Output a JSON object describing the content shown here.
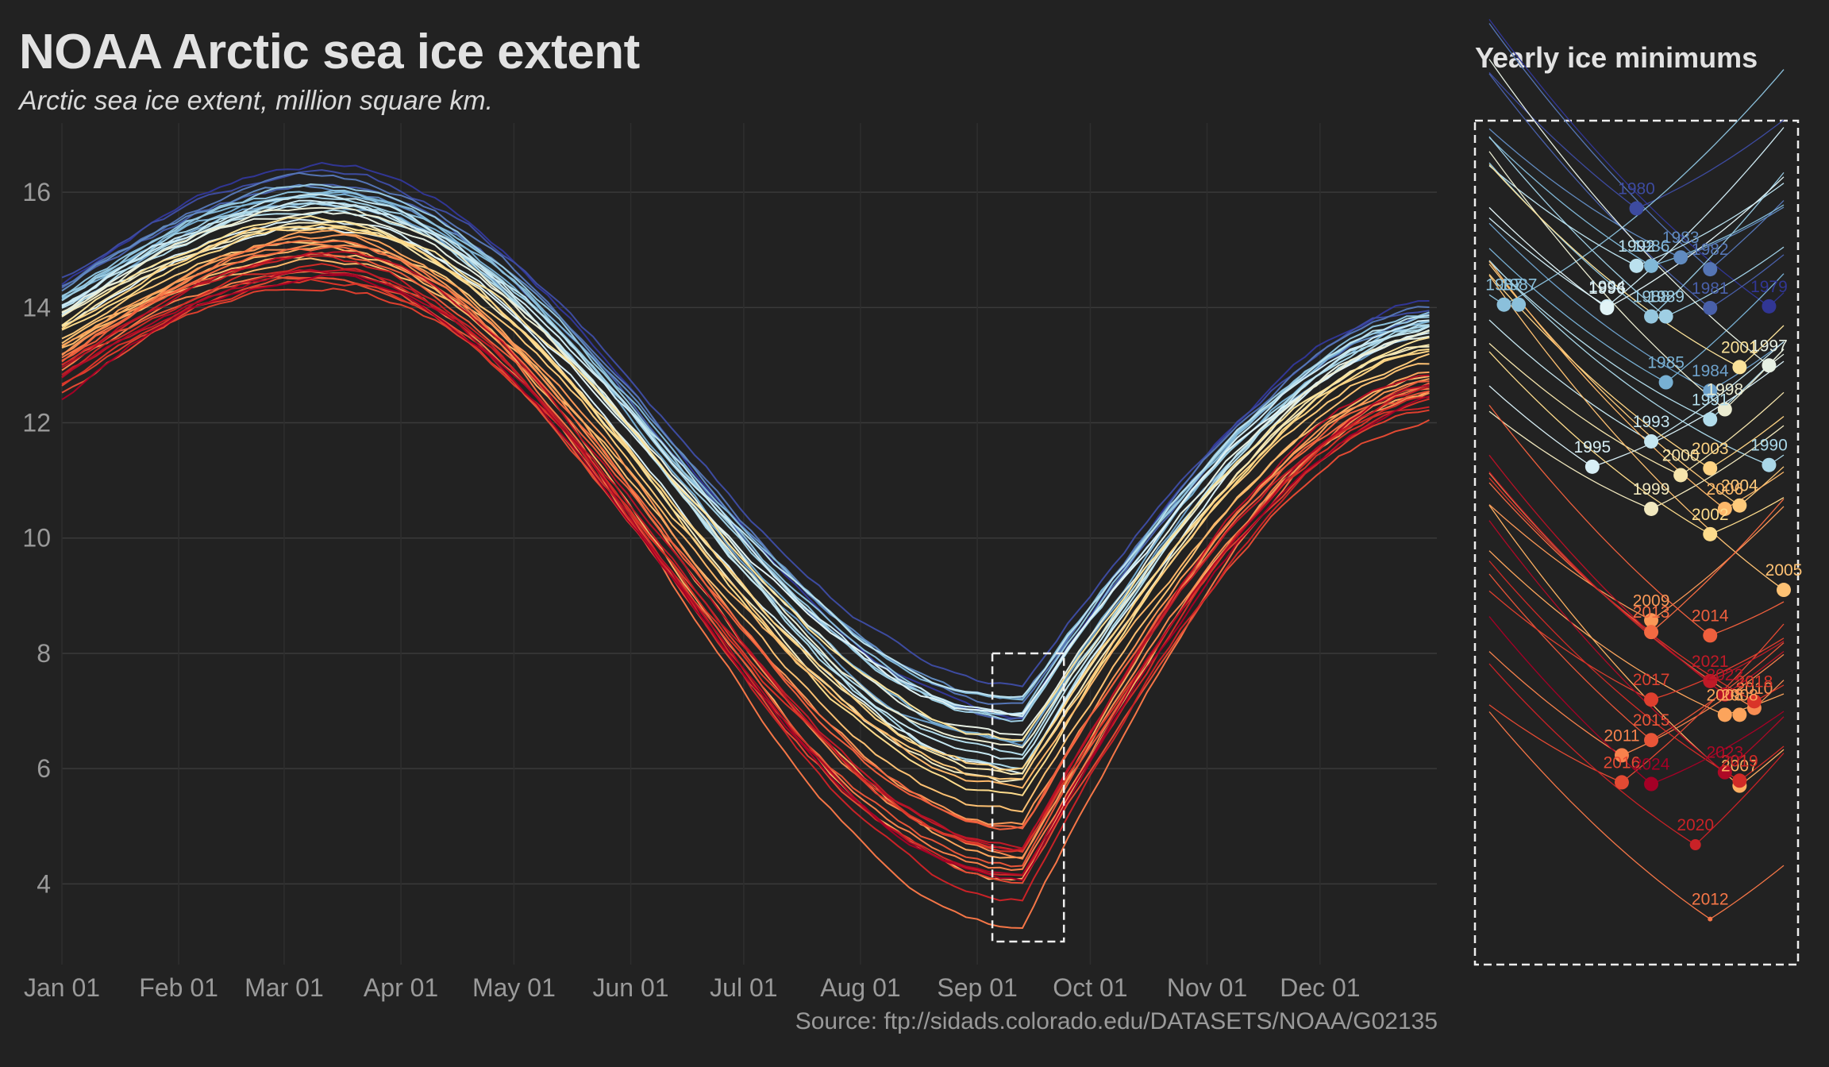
{
  "header": {
    "title": "NOAA Arctic sea ice extent",
    "subtitle": "Arctic sea ice extent, million square km."
  },
  "inset": {
    "title": "Yearly ice minimums"
  },
  "footer": {
    "source": "Source: ftp://sidads.colorado.edu/DATASETS/NOAA/G02135"
  },
  "chart_data": [
    {
      "type": "line",
      "title": "NOAA Arctic sea ice extent",
      "subtitle": "Arctic sea ice extent, million square km.",
      "xlabel": "",
      "ylabel": "",
      "x_ticks": [
        "Jan 01",
        "Feb 01",
        "Mar 01",
        "Apr 01",
        "May 01",
        "Jun 01",
        "Jul 01",
        "Aug 01",
        "Sep 01",
        "Oct 01",
        "Nov 01",
        "Dec 01"
      ],
      "x_tick_days": [
        1,
        32,
        60,
        91,
        121,
        152,
        182,
        213,
        244,
        274,
        305,
        335
      ],
      "y_ticks": [
        4,
        6,
        8,
        10,
        12,
        14,
        16
      ],
      "xlim_days": [
        1,
        366
      ],
      "ylim": [
        2.6,
        17.2
      ],
      "grid": true,
      "legend": "none",
      "color_scale": "diverging: dark blue (1979) -> light blue -> pale yellow -> orange -> dark red (2024)",
      "annotation": "dashed box around the September minimum window (approx. Sep 05 - Sep 24, extent 3.0 - 8.0)",
      "highlight_box": {
        "x_days": [
          248,
          267
        ],
        "y": [
          3.0,
          8.0
        ]
      },
      "series_note": "One line per year 1979-2024. Each curve: ~14.5 on Jan 01 (older years) / ~13 (recent), peak ~15-16.5 in early-mid March, decline through summer to September minimum, recovery to ~12-14 by Dec 31.",
      "series": [
        {
          "name": "1979",
          "jan1": 14.4,
          "max": 16.5,
          "min": 6.9,
          "dec31": 14.2
        },
        {
          "name": "1980",
          "jan1": 14.5,
          "max": 16.3,
          "min": 7.48,
          "dec31": 14.0
        },
        {
          "name": "1981",
          "jan1": 14.3,
          "max": 16.1,
          "min": 6.89,
          "dec31": 13.9
        },
        {
          "name": "1982",
          "jan1": 14.4,
          "max": 16.2,
          "min": 7.12,
          "dec31": 14.0
        },
        {
          "name": "1983",
          "jan1": 14.3,
          "max": 16.1,
          "min": 7.19,
          "dec31": 13.8
        },
        {
          "name": "1984",
          "jan1": 14.0,
          "max": 15.8,
          "min": 6.4,
          "dec31": 13.6
        },
        {
          "name": "1985",
          "jan1": 14.1,
          "max": 15.9,
          "min": 6.45,
          "dec31": 13.8
        },
        {
          "name": "1986",
          "jan1": 14.2,
          "max": 16.0,
          "min": 7.14,
          "dec31": 13.8
        },
        {
          "name": "1987",
          "jan1": 14.2,
          "max": 16.0,
          "min": 6.91,
          "dec31": 13.9
        },
        {
          "name": "1988",
          "jan1": 14.2,
          "max": 16.1,
          "min": 6.84,
          "dec31": 13.9
        },
        {
          "name": "1989",
          "jan1": 14.1,
          "max": 15.9,
          "min": 6.84,
          "dec31": 13.7
        },
        {
          "name": "1990",
          "jan1": 14.0,
          "max": 15.9,
          "min": 5.96,
          "dec31": 13.7
        },
        {
          "name": "1991",
          "jan1": 13.9,
          "max": 15.7,
          "min": 6.23,
          "dec31": 13.7
        },
        {
          "name": "1992",
          "jan1": 14.0,
          "max": 15.8,
          "min": 7.14,
          "dec31": 13.8
        },
        {
          "name": "1993",
          "jan1": 14.0,
          "max": 15.9,
          "min": 6.1,
          "dec31": 13.7
        },
        {
          "name": "1994",
          "jan1": 14.0,
          "max": 15.8,
          "min": 6.9,
          "dec31": 13.8
        },
        {
          "name": "1995",
          "jan1": 13.9,
          "max": 15.5,
          "min": 5.95,
          "dec31": 13.5
        },
        {
          "name": "1996",
          "jan1": 13.7,
          "max": 15.4,
          "min": 6.89,
          "dec31": 13.6
        },
        {
          "name": "1997",
          "jan1": 13.9,
          "max": 15.6,
          "min": 6.55,
          "dec31": 13.6
        },
        {
          "name": "1998",
          "jan1": 13.9,
          "max": 15.7,
          "min": 6.29,
          "dec31": 13.6
        },
        {
          "name": "1999",
          "jan1": 13.8,
          "max": 15.5,
          "min": 5.7,
          "dec31": 13.4
        },
        {
          "name": "2000",
          "jan1": 13.7,
          "max": 15.4,
          "min": 5.9,
          "dec31": 13.4
        },
        {
          "name": "2001",
          "jan1": 13.7,
          "max": 15.5,
          "min": 6.54,
          "dec31": 13.4
        },
        {
          "name": "2002",
          "jan1": 13.6,
          "max": 15.4,
          "min": 5.55,
          "dec31": 13.4
        },
        {
          "name": "2003",
          "jan1": 13.6,
          "max": 15.4,
          "min": 5.94,
          "dec31": 13.3
        },
        {
          "name": "2004",
          "jan1": 13.5,
          "max": 15.2,
          "min": 5.72,
          "dec31": 13.2
        },
        {
          "name": "2005",
          "jan1": 13.4,
          "max": 15.0,
          "min": 5.22,
          "dec31": 13.0
        },
        {
          "name": "2006",
          "jan1": 13.3,
          "max": 14.8,
          "min": 5.7,
          "dec31": 12.8
        },
        {
          "name": "2007",
          "jan1": 13.3,
          "max": 15.0,
          "min": 4.06,
          "dec31": 12.6
        },
        {
          "name": "2008",
          "jan1": 13.3,
          "max": 15.3,
          "min": 4.48,
          "dec31": 12.9
        },
        {
          "name": "2009",
          "jan1": 13.2,
          "max": 15.2,
          "min": 5.04,
          "dec31": 12.8
        },
        {
          "name": "2010",
          "jan1": 13.2,
          "max": 15.1,
          "min": 4.52,
          "dec31": 12.5
        },
        {
          "name": "2011",
          "jan1": 12.9,
          "max": 14.6,
          "min": 4.24,
          "dec31": 12.6
        },
        {
          "name": "2012",
          "jan1": 13.1,
          "max": 15.2,
          "min": 3.27,
          "dec31": 12.7
        },
        {
          "name": "2013",
          "jan1": 13.1,
          "max": 15.0,
          "min": 4.97,
          "dec31": 12.7
        },
        {
          "name": "2014",
          "jan1": 13.1,
          "max": 14.9,
          "min": 4.95,
          "dec31": 12.7
        },
        {
          "name": "2015",
          "jan1": 13.0,
          "max": 14.5,
          "min": 4.33,
          "dec31": 12.5
        },
        {
          "name": "2016",
          "jan1": 12.5,
          "max": 14.5,
          "min": 4.08,
          "dec31": 12.1
        },
        {
          "name": "2017",
          "jan1": 12.6,
          "max": 14.4,
          "min": 4.57,
          "dec31": 12.3
        },
        {
          "name": "2018",
          "jan1": 12.7,
          "max": 14.5,
          "min": 4.56,
          "dec31": 12.4
        },
        {
          "name": "2019",
          "jan1": 12.8,
          "max": 14.7,
          "min": 4.09,
          "dec31": 12.5
        },
        {
          "name": "2020",
          "jan1": 13.0,
          "max": 14.8,
          "min": 3.71,
          "dec31": 12.3
        },
        {
          "name": "2021",
          "jan1": 12.8,
          "max": 14.6,
          "min": 4.68,
          "dec31": 12.6
        },
        {
          "name": "2022",
          "jan1": 13.0,
          "max": 14.9,
          "min": 4.6,
          "dec31": 12.9
        },
        {
          "name": "2023",
          "jan1": 12.8,
          "max": 14.6,
          "min": 4.14,
          "dec31": 12.7
        },
        {
          "name": "2024",
          "jan1": 12.4,
          "max": 14.6,
          "min": 4.07,
          "dec31": 12.4
        }
      ]
    },
    {
      "type": "scatter",
      "title": "Yearly ice minimums",
      "note": "Zoomed view of the dashed September-minimum window; one short line per year with a dot at its minimum, labeled by year.",
      "ylim": [
        3.0,
        8.0
      ],
      "xlim_days": [
        248,
        268
      ],
      "points": [
        {
          "year": "1979",
          "min_day": 267,
          "min": 6.9
        },
        {
          "year": "1980",
          "min_day": 258,
          "min": 7.48
        },
        {
          "year": "1981",
          "min_day": 263,
          "min": 6.89
        },
        {
          "year": "1982",
          "min_day": 263,
          "min": 7.12
        },
        {
          "year": "1983",
          "min_day": 261,
          "min": 7.19
        },
        {
          "year": "1984",
          "min_day": 263,
          "min": 6.4
        },
        {
          "year": "1985",
          "min_day": 260,
          "min": 6.45
        },
        {
          "year": "1986",
          "min_day": 259,
          "min": 7.14
        },
        {
          "year": "1987",
          "min_day": 249,
          "min": 6.91
        },
        {
          "year": "1987",
          "min_day": 250,
          "min": 6.91
        },
        {
          "year": "1988",
          "min_day": 259,
          "min": 6.84
        },
        {
          "year": "1989",
          "min_day": 260,
          "min": 6.84
        },
        {
          "year": "1990",
          "min_day": 267,
          "min": 5.96
        },
        {
          "year": "1991",
          "min_day": 263,
          "min": 6.23
        },
        {
          "year": "1992",
          "min_day": 258,
          "min": 7.14
        },
        {
          "year": "1993",
          "min_day": 259,
          "min": 6.1
        },
        {
          "year": "1994",
          "min_day": 256,
          "min": 6.9
        },
        {
          "year": "1995",
          "min_day": 255,
          "min": 5.95
        },
        {
          "year": "1996",
          "min_day": 256,
          "min": 6.89
        },
        {
          "year": "1997",
          "min_day": 267,
          "min": 6.55
        },
        {
          "year": "1998",
          "min_day": 264,
          "min": 6.29
        },
        {
          "year": "1999",
          "min_day": 259,
          "min": 5.7
        },
        {
          "year": "2000",
          "min_day": 261,
          "min": 5.9
        },
        {
          "year": "2001",
          "min_day": 265,
          "min": 6.54
        },
        {
          "year": "2002",
          "min_day": 263,
          "min": 5.55
        },
        {
          "year": "2003",
          "min_day": 263,
          "min": 5.94
        },
        {
          "year": "2004",
          "min_day": 265,
          "min": 5.72
        },
        {
          "year": "2005",
          "min_day": 268,
          "min": 5.22
        },
        {
          "year": "2006",
          "min_day": 264,
          "min": 5.7
        },
        {
          "year": "2007",
          "min_day": 265,
          "min": 4.06
        },
        {
          "year": "2008",
          "min_day": 264,
          "min": 4.48
        },
        {
          "year": "2008",
          "min_day": 265,
          "min": 4.48
        },
        {
          "year": "2009",
          "min_day": 259,
          "min": 5.04
        },
        {
          "year": "2010",
          "min_day": 266,
          "min": 4.52
        },
        {
          "year": "2011",
          "min_day": 257,
          "min": 4.24
        },
        {
          "year": "2012",
          "min_day": 263,
          "min": 3.27
        },
        {
          "year": "2013",
          "min_day": 259,
          "min": 4.97
        },
        {
          "year": "2014",
          "min_day": 263,
          "min": 4.95
        },
        {
          "year": "2015",
          "min_day": 259,
          "min": 4.33
        },
        {
          "year": "2016",
          "min_day": 257,
          "min": 4.08
        },
        {
          "year": "2017",
          "min_day": 259,
          "min": 4.57
        },
        {
          "year": "2018",
          "min_day": 266,
          "min": 4.56
        },
        {
          "year": "2019",
          "min_day": 265,
          "min": 4.09
        },
        {
          "year": "2020",
          "min_day": 262,
          "min": 3.71
        },
        {
          "year": "2021",
          "min_day": 263,
          "min": 4.68
        },
        {
          "year": "2022",
          "min_day": 264,
          "min": 4.6
        },
        {
          "year": "2023",
          "min_day": 264,
          "min": 4.14
        },
        {
          "year": "2024",
          "min_day": 259,
          "min": 4.07
        }
      ]
    }
  ],
  "colors": {
    "background": "#222222",
    "grid": "#3a3a3a",
    "axis_text": "#9a9a9a",
    "title_text": "#e2e2e2",
    "palette_old_to_new": [
      "#313695",
      "#74add1",
      "#abd9e9",
      "#e0f3f8",
      "#fee090",
      "#fdae61",
      "#f46d43",
      "#d73027",
      "#a50026"
    ]
  }
}
